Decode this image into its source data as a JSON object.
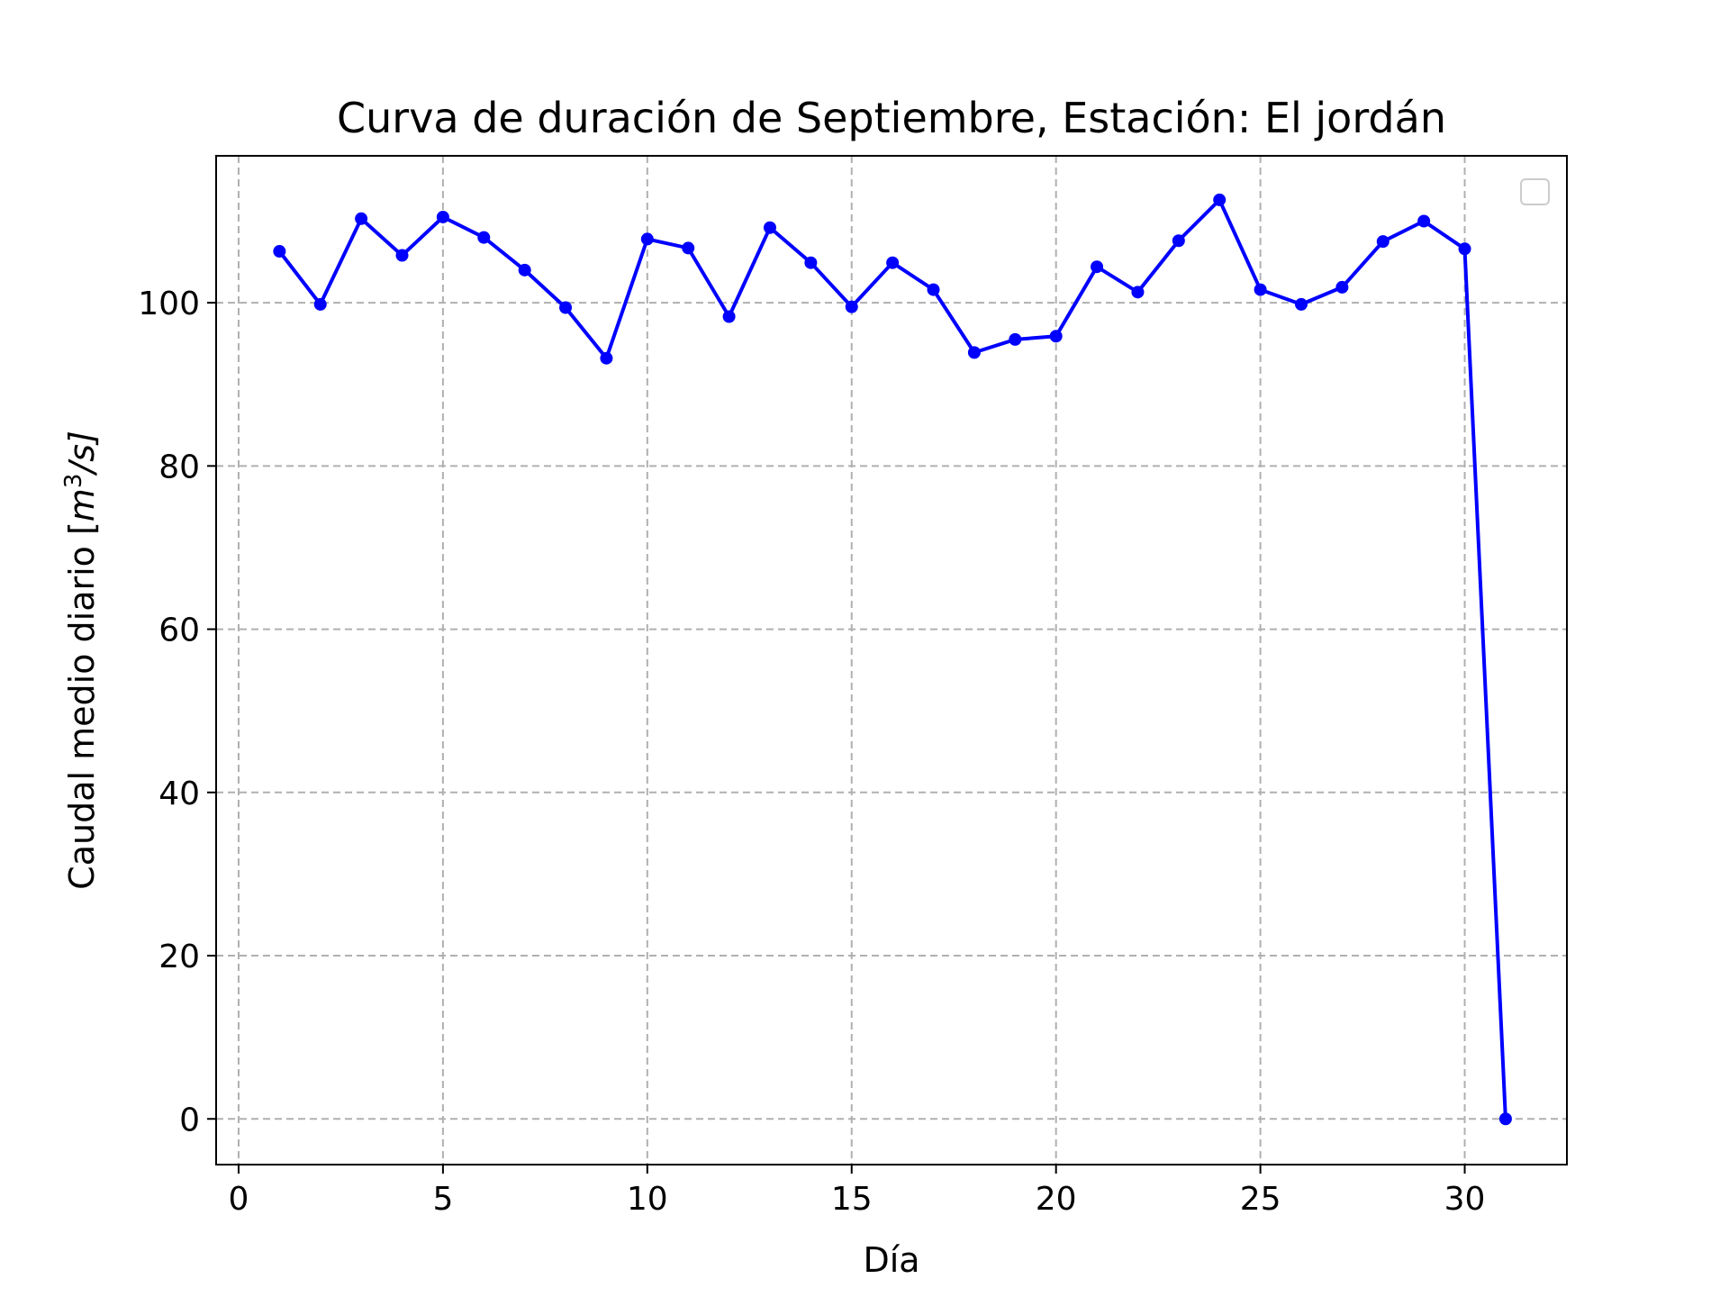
{
  "chart_data": {
    "type": "line",
    "title": "Curva de duración de Septiembre, Estación: El jordán",
    "xlabel": "Día",
    "ylabel_main": "Caudal medio diario [",
    "ylabel_m": "m",
    "ylabel_exp": "3",
    "ylabel_tail": "/s]",
    "xlim": [
      -0.55,
      32.5
    ],
    "ylim": [
      -5.6,
      118
    ],
    "xticks": [
      0,
      5,
      10,
      15,
      20,
      25,
      30
    ],
    "yticks": [
      0,
      20,
      40,
      60,
      80,
      100
    ],
    "grid": true,
    "legend": "top-right (empty)",
    "line_color": "#0000ff",
    "series": [
      {
        "x": [
          1,
          2,
          3,
          4,
          5,
          6,
          7,
          8,
          9,
          10,
          11,
          12,
          13,
          14,
          15,
          16,
          17,
          18,
          19,
          20,
          21,
          22,
          23,
          24,
          25,
          26,
          27,
          28,
          29,
          30,
          31
        ],
        "values": [
          106.3,
          99.8,
          110.3,
          105.8,
          110.5,
          108.0,
          104.0,
          99.4,
          93.2,
          107.8,
          106.7,
          98.3,
          109.2,
          104.9,
          99.5,
          104.9,
          101.6,
          93.9,
          95.5,
          95.9,
          104.4,
          101.3,
          107.6,
          112.6,
          101.6,
          99.8,
          101.9,
          107.5,
          110.0,
          106.6,
          0.0
        ]
      }
    ]
  }
}
